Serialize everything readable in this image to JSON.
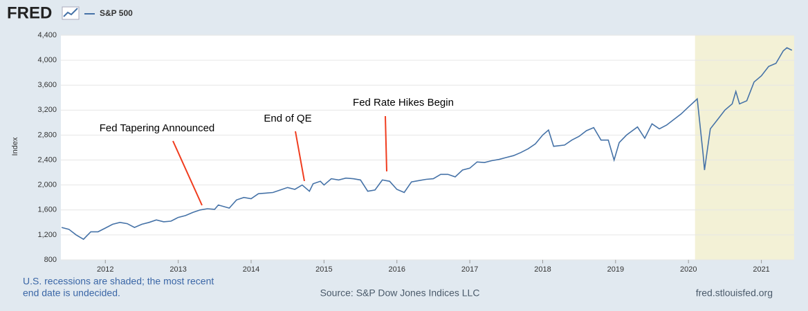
{
  "chart_data": {
    "type": "line",
    "logo": "FRED",
    "y_label": "Index",
    "x": [
      2011.4,
      2011.5,
      2011.6,
      2011.7,
      2011.8,
      2011.9,
      2012.0,
      2012.1,
      2012.2,
      2012.3,
      2012.4,
      2012.5,
      2012.6,
      2012.7,
      2012.8,
      2012.9,
      2013.0,
      2013.1,
      2013.2,
      2013.3,
      2013.4,
      2013.5,
      2013.55,
      2013.7,
      2013.8,
      2013.9,
      2014.0,
      2014.1,
      2014.2,
      2014.3,
      2014.4,
      2014.5,
      2014.6,
      2014.7,
      2014.8,
      2014.85,
      2014.95,
      2015.0,
      2015.1,
      2015.2,
      2015.3,
      2015.4,
      2015.5,
      2015.6,
      2015.7,
      2015.8,
      2015.9,
      2016.0,
      2016.1,
      2016.2,
      2016.3,
      2016.4,
      2016.5,
      2016.6,
      2016.7,
      2016.8,
      2016.9,
      2017.0,
      2017.1,
      2017.2,
      2017.3,
      2017.4,
      2017.5,
      2017.6,
      2017.7,
      2017.8,
      2017.9,
      2018.0,
      2018.08,
      2018.15,
      2018.3,
      2018.4,
      2018.5,
      2018.6,
      2018.7,
      2018.8,
      2018.9,
      2018.98,
      2019.05,
      2019.15,
      2019.3,
      2019.4,
      2019.5,
      2019.6,
      2019.7,
      2019.8,
      2019.9,
      2020.0,
      2020.12,
      2020.2,
      2020.22,
      2020.3,
      2020.4,
      2020.5,
      2020.6,
      2020.65,
      2020.7,
      2020.8,
      2020.9,
      2021.0,
      2021.1,
      2021.2,
      2021.3,
      2021.35,
      2021.42
    ],
    "series": [
      {
        "name": "S&P 500",
        "color": "#4572a7",
        "values": [
          1320,
          1290,
          1200,
          1130,
          1250,
          1250,
          1310,
          1370,
          1400,
          1380,
          1320,
          1370,
          1400,
          1440,
          1410,
          1420,
          1480,
          1510,
          1560,
          1600,
          1620,
          1610,
          1680,
          1630,
          1760,
          1800,
          1780,
          1860,
          1870,
          1880,
          1920,
          1960,
          1930,
          2000,
          1900,
          2020,
          2060,
          2000,
          2100,
          2080,
          2110,
          2100,
          2080,
          1900,
          1920,
          2080,
          2060,
          1930,
          1880,
          2050,
          2070,
          2090,
          2100,
          2170,
          2170,
          2130,
          2240,
          2270,
          2370,
          2360,
          2390,
          2410,
          2440,
          2470,
          2520,
          2580,
          2660,
          2800,
          2880,
          2620,
          2640,
          2720,
          2780,
          2870,
          2920,
          2720,
          2720,
          2400,
          2680,
          2800,
          2930,
          2750,
          2980,
          2900,
          2960,
          3050,
          3140,
          3250,
          3380,
          2500,
          2240,
          2900,
          3050,
          3200,
          3300,
          3500,
          3300,
          3350,
          3650,
          3750,
          3900,
          3950,
          4150,
          4200,
          4160
        ]
      }
    ],
    "xlim": [
      2011.39,
      2021.45
    ],
    "xticks": [
      2012,
      2013,
      2014,
      2015,
      2016,
      2017,
      2018,
      2019,
      2020,
      2021
    ],
    "ylim": [
      800,
      4400
    ],
    "yticks": [
      800,
      {
        "value": 1200,
        "label": "1,200"
      },
      {
        "value": 1600,
        "label": "1,600"
      },
      {
        "value": 2000,
        "label": "2,000"
      },
      {
        "value": 2400,
        "label": "2,400"
      },
      {
        "value": 2800,
        "label": "2,800"
      },
      {
        "value": 3200,
        "label": "3,200"
      },
      {
        "value": 3600,
        "label": "3,600"
      },
      {
        "value": 4000,
        "label": "4,000"
      },
      {
        "value": 4400,
        "label": "4,400"
      }
    ],
    "grid": true,
    "recession": [
      2020.09,
      2021.45
    ],
    "annotations": [
      "Fed Tapering Announced",
      "End of QE",
      "Fed Rate Hikes Begin"
    ],
    "note": [
      "U.S. recessions are shaded; the most recent",
      "end date is undecided."
    ],
    "source": "Source: S&P Dow Jones Indices LLC",
    "url": "fred.stlouisfed.org"
  }
}
